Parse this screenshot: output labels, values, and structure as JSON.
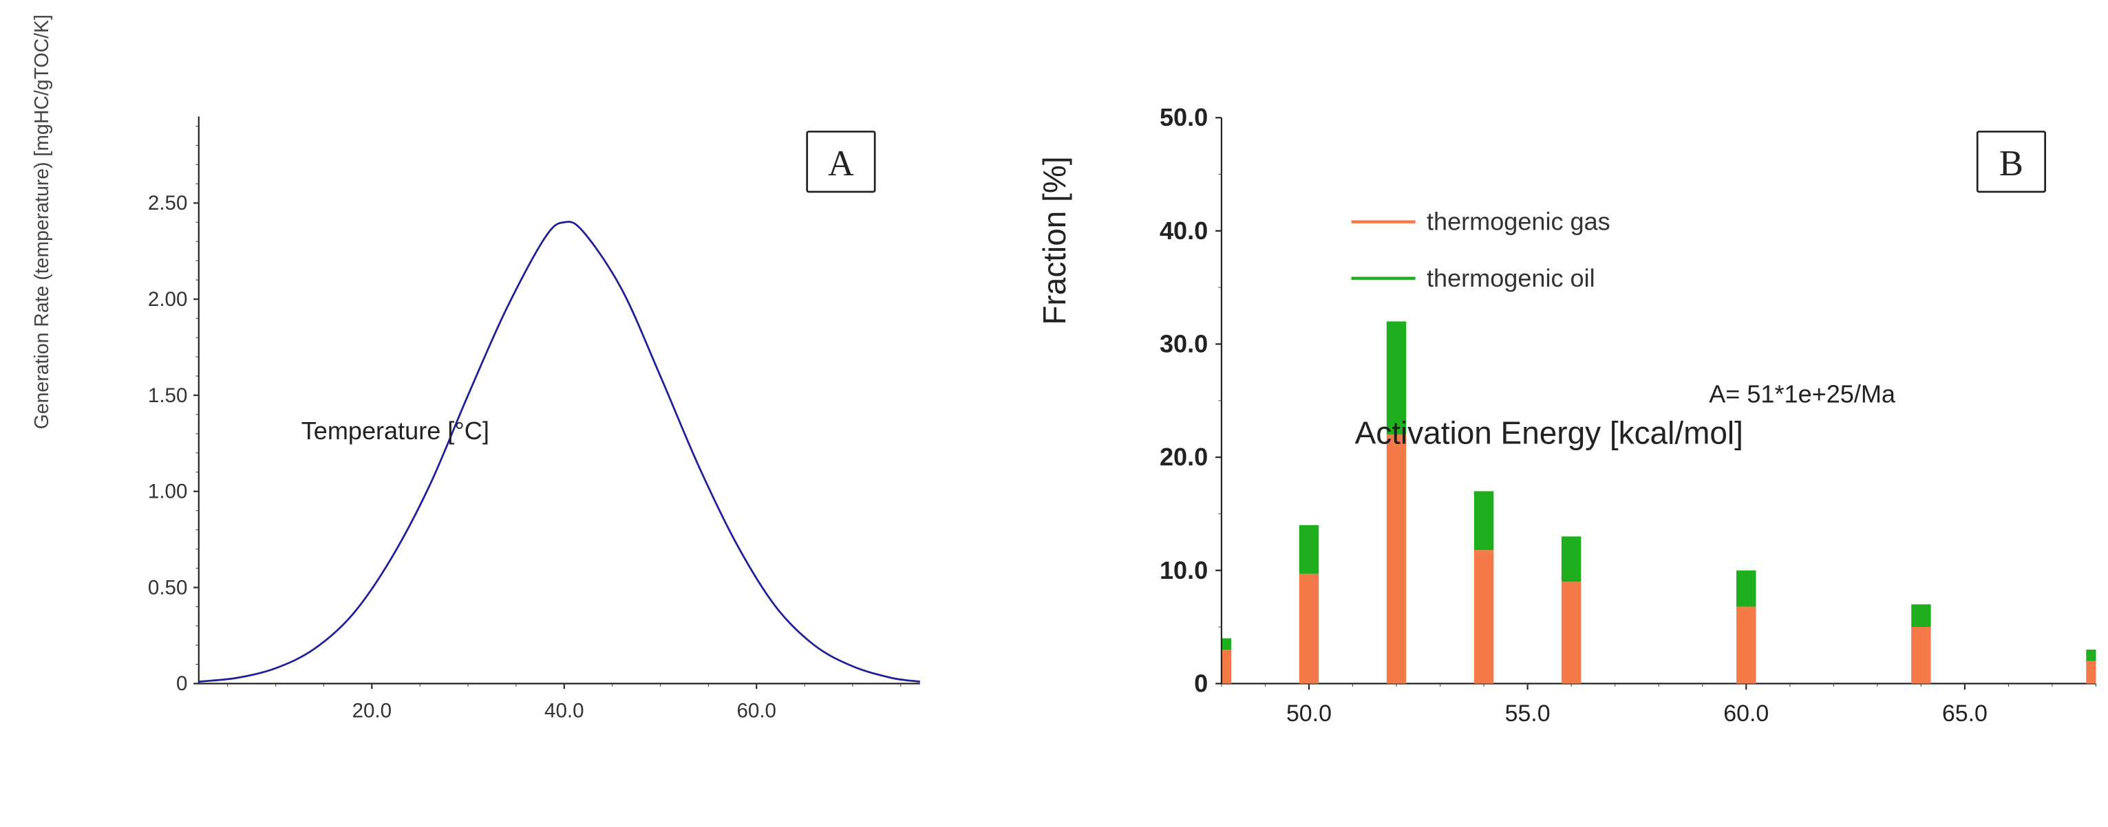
{
  "chart_data": [
    {
      "type": "line",
      "panel_label": "A",
      "title": "",
      "xlabel": "Temperature [°C]",
      "ylabel": "Generation Rate (temperature) [mgHC/gTOC/K]",
      "xlim": [
        2,
        77
      ],
      "ylim": [
        0,
        2.95
      ],
      "x_ticks": [
        "20.0",
        "40.0",
        "60.0"
      ],
      "y_ticks": [
        "0",
        "0.50",
        "1.00",
        "1.50",
        "2.00",
        "2.50"
      ],
      "series": [
        {
          "name": "generation rate",
          "color": "#1f1f9a",
          "x": [
            2,
            6,
            10,
            14,
            18,
            22,
            26,
            30,
            34,
            38,
            40,
            42,
            46,
            50,
            54,
            58,
            62,
            66,
            70,
            74,
            77
          ],
          "y": [
            0.01,
            0.03,
            0.08,
            0.18,
            0.36,
            0.65,
            1.03,
            1.5,
            1.95,
            2.32,
            2.4,
            2.35,
            2.05,
            1.6,
            1.13,
            0.72,
            0.4,
            0.2,
            0.09,
            0.03,
            0.01
          ]
        }
      ]
    },
    {
      "type": "bar",
      "stacked": true,
      "panel_label": "B",
      "title": "",
      "xlabel": "Activation Energy [kcal/mol]",
      "ylabel": "Fraction [%]",
      "xlim": [
        48,
        68
      ],
      "ylim": [
        0,
        50
      ],
      "x_ticks": [
        "50.0",
        "55.0",
        "60.0",
        "65.0"
      ],
      "y_ticks": [
        "0",
        "10.0",
        "20.0",
        "30.0",
        "40.0",
        "50.0"
      ],
      "x": [
        48,
        50,
        52,
        54,
        56,
        60,
        64,
        68
      ],
      "series": [
        {
          "name": "thermogenic gas",
          "color": "#f47a4a",
          "values": [
            3,
            9.7,
            22,
            11.8,
            9,
            6.8,
            5,
            2
          ]
        },
        {
          "name": "thermogenic oil",
          "color": "#1eae1e",
          "values": [
            1,
            4.3,
            10,
            5.2,
            4,
            3.2,
            2,
            1
          ]
        }
      ],
      "annotation": "A= 51*1e+25/Ma"
    }
  ]
}
